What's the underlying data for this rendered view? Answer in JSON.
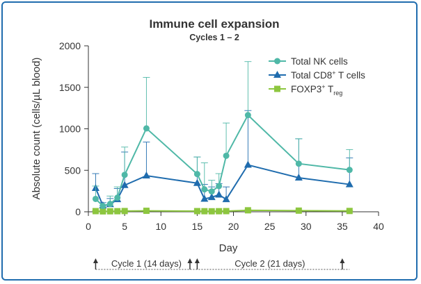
{
  "chart_data": {
    "type": "line",
    "title": "Immune cell expansion",
    "subtitle": "Cycles 1 – 2",
    "xlabel": "Day",
    "ylabel": "Absolute count (cells/µL blood)",
    "xlim": [
      0,
      40
    ],
    "ylim": [
      0,
      2000
    ],
    "x_ticks": [
      0,
      5,
      10,
      15,
      20,
      25,
      30,
      35,
      40
    ],
    "y_ticks": [
      0,
      500,
      1000,
      1500,
      2000
    ],
    "series": [
      {
        "name": "Total NK cells",
        "marker": "circle",
        "color": "#4fb8a7",
        "x": [
          1,
          2,
          3,
          4,
          5,
          8,
          15,
          16,
          17,
          18,
          19,
          22,
          29,
          36
        ],
        "y": [
          155,
          70,
          95,
          170,
          445,
          1005,
          455,
          270,
          245,
          310,
          675,
          1165,
          580,
          505
        ],
        "err_upper": [
          310,
          80,
          190,
          300,
          780,
          1620,
          660,
          590,
          380,
          460,
          1070,
          1810,
          880,
          750
        ]
      },
      {
        "name": "Total CD8⁺ T cells",
        "marker": "triangle",
        "color": "#1f6cae",
        "x": [
          1,
          2,
          3,
          4,
          5,
          8,
          15,
          16,
          17,
          18,
          19,
          22,
          29,
          36
        ],
        "y": [
          285,
          75,
          90,
          150,
          320,
          435,
          345,
          155,
          175,
          205,
          150,
          565,
          410,
          330
        ],
        "err_upper": [
          460,
          110,
          160,
          280,
          720,
          840,
          660,
          330,
          300,
          340,
          300,
          1220,
          880,
          650
        ]
      },
      {
        "name": "FOXP3⁺ Treg",
        "marker": "square",
        "color": "#8dc63f",
        "x": [
          1,
          2,
          3,
          4,
          5,
          8,
          15,
          16,
          17,
          18,
          19,
          22,
          29,
          36
        ],
        "y": [
          8,
          5,
          6,
          7,
          9,
          12,
          8,
          7,
          6,
          7,
          8,
          18,
          14,
          10
        ],
        "err_upper": [
          12,
          8,
          9,
          10,
          14,
          18,
          12,
          10,
          9,
          10,
          12,
          24,
          20,
          14
        ]
      }
    ],
    "legend": {
      "placement": "top-right",
      "items": [
        {
          "label": "Total NK cells",
          "sup": "",
          "sub": ""
        },
        {
          "label": "Total CD8",
          "sup": "+",
          "suffix": " T cells",
          "sub": ""
        },
        {
          "label": "FOXP3",
          "sup": "+",
          "suffix": " T",
          "sub": "reg"
        }
      ]
    },
    "cycles": [
      {
        "label": "Cycle 1 (14 days)",
        "start_day": 1,
        "end_day": 15
      },
      {
        "label": "Cycle 2 (21 days)",
        "start_day": 15,
        "end_day": 36
      }
    ],
    "dosing_arrow_days": [
      1,
      14,
      15,
      35
    ]
  }
}
